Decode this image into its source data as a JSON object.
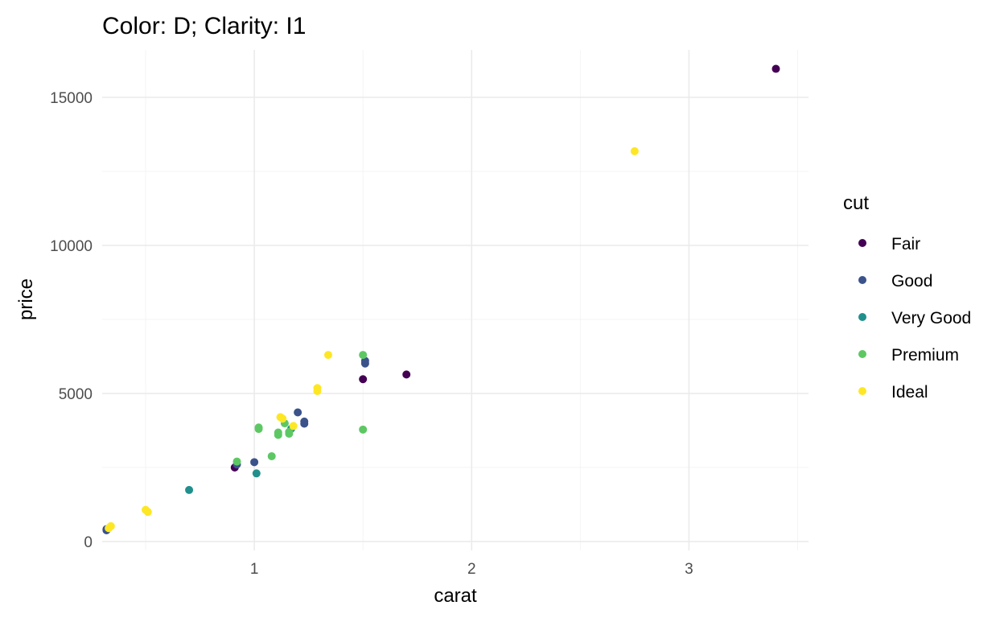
{
  "chart_data": {
    "type": "scatter",
    "title": "Color: D; Clarity: I1",
    "xlabel": "carat",
    "ylabel": "price",
    "xlim": [
      0.3,
      3.55
    ],
    "ylim": [
      -300,
      16600
    ],
    "x_ticks": [
      1,
      2,
      3
    ],
    "x_tick_labels": [
      "1",
      "2",
      "3"
    ],
    "y_ticks": [
      0,
      5000,
      10000,
      15000
    ],
    "y_tick_labels": [
      "0",
      "5000",
      "10000",
      "15000"
    ],
    "grid": true,
    "legend": {
      "title": "cut",
      "placement": "right",
      "entries": [
        {
          "name": "Fair",
          "color": "#440154"
        },
        {
          "name": "Good",
          "color": "#3B528B"
        },
        {
          "name": "Very Good",
          "color": "#21908C"
        },
        {
          "name": "Premium",
          "color": "#5DC863"
        },
        {
          "name": "Ideal",
          "color": "#FDE725"
        }
      ]
    },
    "series": [
      {
        "name": "Fair",
        "color": "#440154",
        "points": [
          [
            0.91,
            2500
          ],
          [
            1.5,
            5480
          ],
          [
            1.7,
            5640
          ],
          [
            3.4,
            15960
          ]
        ]
      },
      {
        "name": "Good",
        "color": "#3B528B",
        "points": [
          [
            0.32,
            420
          ],
          [
            0.32,
            380
          ],
          [
            0.92,
            2600
          ],
          [
            1.0,
            2680
          ],
          [
            1.2,
            4360
          ],
          [
            1.23,
            3980
          ],
          [
            1.23,
            4050
          ],
          [
            1.51,
            6010
          ],
          [
            1.51,
            6100
          ]
        ]
      },
      {
        "name": "Very Good",
        "color": "#21908C",
        "points": [
          [
            0.7,
            1740
          ],
          [
            1.01,
            2300
          ],
          [
            1.17,
            3810
          ]
        ]
      },
      {
        "name": "Premium",
        "color": "#5DC863",
        "points": [
          [
            0.92,
            2700
          ],
          [
            1.02,
            3800
          ],
          [
            1.02,
            3850
          ],
          [
            1.08,
            2880
          ],
          [
            1.11,
            3600
          ],
          [
            1.11,
            3680
          ],
          [
            1.14,
            3990
          ],
          [
            1.16,
            3640
          ],
          [
            1.16,
            3700
          ],
          [
            1.5,
            6300
          ],
          [
            1.5,
            3780
          ]
        ]
      },
      {
        "name": "Ideal",
        "color": "#FDE725",
        "points": [
          [
            0.33,
            450
          ],
          [
            0.34,
            520
          ],
          [
            0.5,
            1070
          ],
          [
            0.51,
            1000
          ],
          [
            1.12,
            4200
          ],
          [
            1.13,
            4150
          ],
          [
            1.18,
            3900
          ],
          [
            1.29,
            5080
          ],
          [
            1.29,
            5180
          ],
          [
            1.34,
            6300
          ],
          [
            2.75,
            13180
          ]
        ]
      }
    ]
  }
}
